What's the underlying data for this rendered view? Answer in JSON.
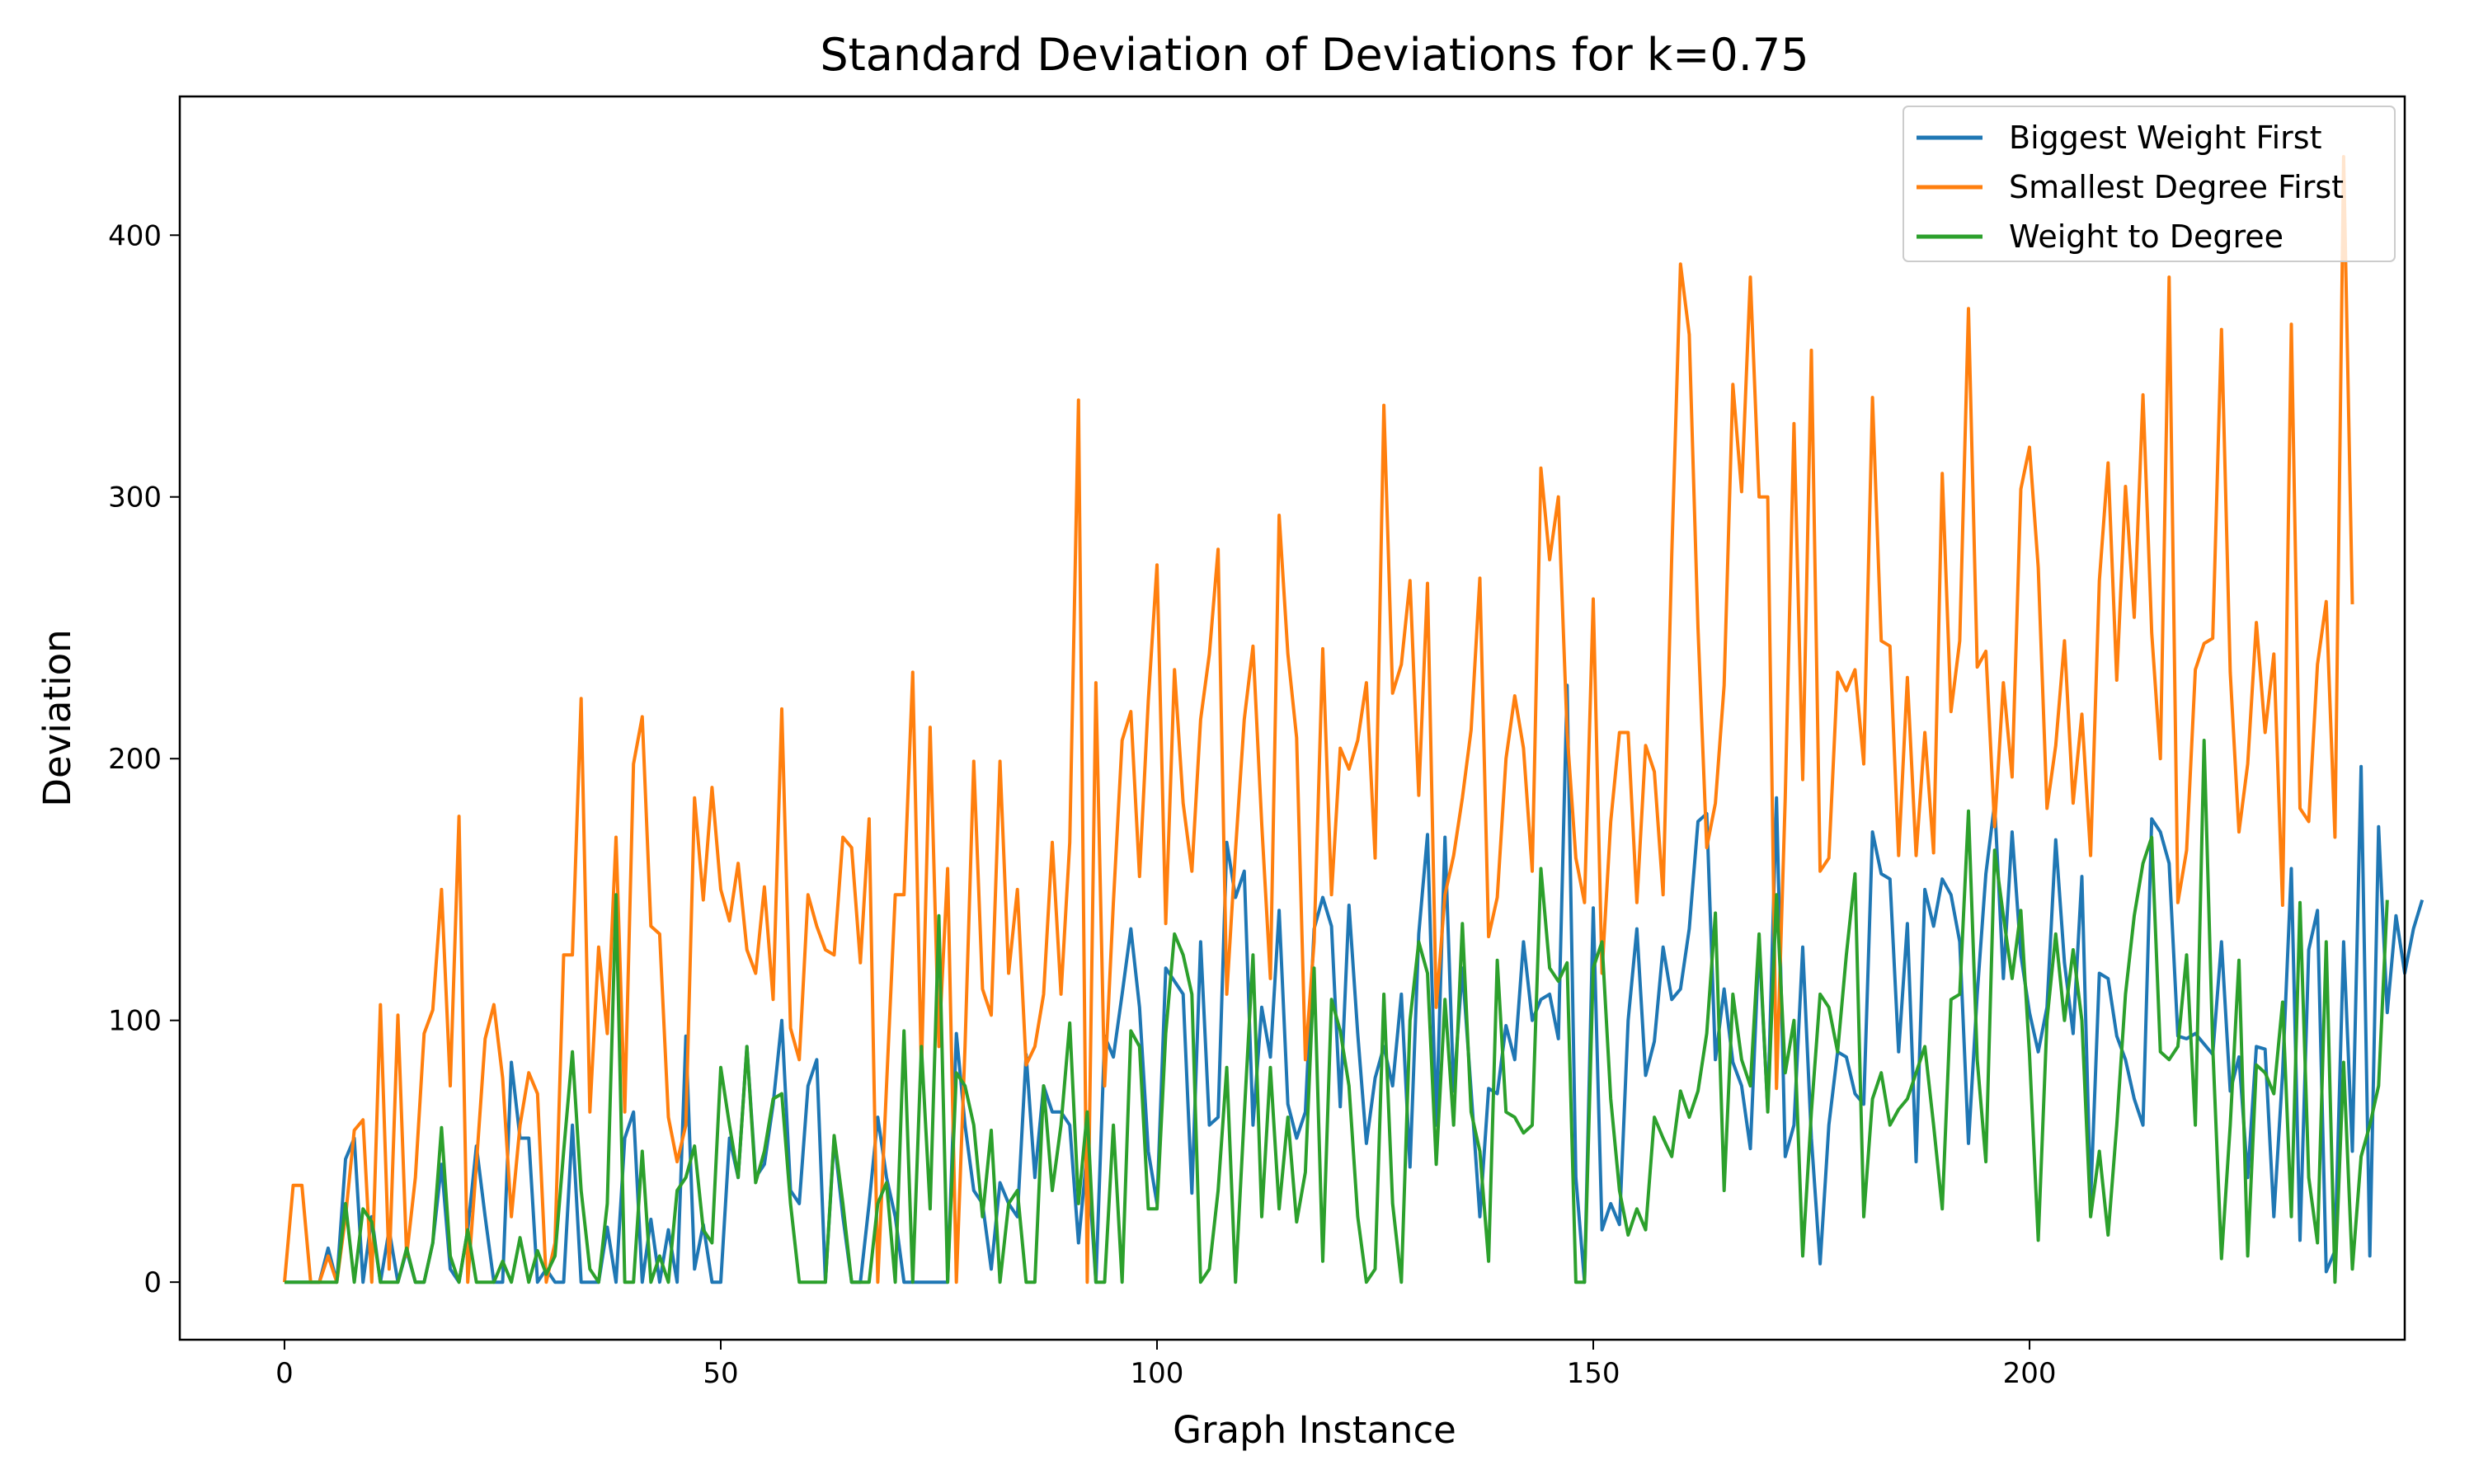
{
  "chart_data": {
    "type": "line",
    "title": "Standard Deviation of Deviations for k=0.75",
    "xlabel": "Graph Instance",
    "ylabel": "Deviation",
    "xlim": [
      -12,
      243
    ],
    "ylim": [
      -22,
      453
    ],
    "xticks": [
      0,
      50,
      100,
      150,
      200
    ],
    "yticks": [
      0,
      100,
      200,
      300,
      400
    ],
    "grid": false,
    "legend_position": "top-right",
    "series": [
      {
        "name": "Biggest Weight First",
        "color": "#1f77b4",
        "values": [
          0,
          0,
          0,
          0,
          0,
          13,
          0,
          47,
          55,
          0,
          25,
          0,
          20,
          0,
          12,
          0,
          0,
          15,
          45,
          5,
          0,
          20,
          52,
          25,
          0,
          0,
          84,
          55,
          55,
          0,
          5,
          0,
          0,
          60,
          0,
          0,
          0,
          21,
          0,
          55,
          65,
          0,
          24,
          0,
          20,
          0,
          94,
          5,
          22,
          0,
          0,
          55,
          40,
          90,
          40,
          45,
          68,
          100,
          35,
          30,
          75,
          85,
          0,
          55,
          25,
          0,
          0,
          30,
          63,
          40,
          25,
          0,
          0,
          0,
          0,
          0,
          0,
          95,
          60,
          35,
          30,
          5,
          38,
          30,
          25,
          87,
          40,
          75,
          65,
          65,
          60,
          15,
          50,
          0,
          94,
          86,
          110,
          135,
          105,
          50,
          30,
          120,
          115,
          110,
          34,
          130,
          60,
          63,
          168,
          147,
          157,
          60,
          105,
          86,
          142,
          68,
          55,
          65,
          135,
          147,
          136,
          67,
          144,
          95,
          53,
          78,
          90,
          75,
          110,
          44,
          133,
          171,
          60,
          170,
          73,
          120,
          73,
          25,
          74,
          72,
          98,
          85,
          130,
          100,
          108,
          110,
          93,
          228,
          40,
          0,
          143,
          20,
          30,
          22,
          100,
          135,
          79,
          92,
          128,
          108,
          112,
          135,
          176,
          179,
          85,
          112,
          84,
          75,
          51,
          130,
          66,
          185,
          48,
          60,
          128,
          55,
          7,
          60,
          88,
          86,
          72,
          68,
          172,
          156,
          154,
          88,
          137,
          46,
          150,
          136,
          154,
          148,
          130,
          53,
          110,
          156,
          183,
          116,
          172,
          125,
          103,
          88,
          105,
          169,
          122,
          95,
          155,
          31,
          118,
          116,
          94,
          85,
          70,
          60,
          177,
          172,
          160,
          94,
          93,
          95,
          91,
          87,
          130,
          73,
          86,
          40,
          90,
          89,
          25,
          80,
          158,
          16,
          127,
          142,
          4,
          12,
          130,
          50,
          197,
          10,
          174,
          103,
          140,
          118,
          135,
          146
        ]
      },
      {
        "name": "Smallest Degree First",
        "color": "#ff7f0e",
        "values": [
          0,
          37,
          37,
          0,
          0,
          10,
          0,
          25,
          58,
          62,
          0,
          106,
          5,
          102,
          10,
          40,
          95,
          104,
          150,
          75,
          178,
          0,
          45,
          93,
          106,
          78,
          25,
          60,
          80,
          72,
          0,
          15,
          125,
          125,
          223,
          65,
          128,
          95,
          170,
          65,
          198,
          216,
          136,
          133,
          63,
          46,
          60,
          185,
          146,
          189,
          150,
          138,
          160,
          127,
          118,
          151,
          108,
          219,
          97,
          85,
          148,
          136,
          127,
          125,
          170,
          166,
          122,
          177,
          0,
          75,
          148,
          148,
          233,
          80,
          212,
          90,
          158,
          0,
          90,
          199,
          112,
          102,
          199,
          118,
          150,
          83,
          90,
          110,
          168,
          110,
          168,
          337,
          0,
          229,
          75,
          145,
          207,
          218,
          155,
          222,
          274,
          137,
          234,
          183,
          157,
          215,
          240,
          280,
          110,
          165,
          215,
          243,
          175,
          116,
          293,
          240,
          208,
          85,
          130,
          242,
          148,
          204,
          196,
          207,
          229,
          162,
          335,
          225,
          236,
          268,
          186,
          267,
          105,
          148,
          163,
          185,
          211,
          269,
          132,
          147,
          200,
          224,
          204,
          157,
          311,
          276,
          300,
          210,
          162,
          145,
          261,
          118,
          176,
          210,
          210,
          145,
          205,
          195,
          148,
          278,
          389,
          362,
          250,
          166,
          183,
          228,
          343,
          302,
          384,
          300,
          300,
          74,
          185,
          328,
          192,
          356,
          157,
          162,
          233,
          226,
          234,
          198,
          338,
          245,
          243,
          163,
          231,
          163,
          210,
          164,
          309,
          218,
          245,
          372,
          235,
          241,
          174,
          229,
          193,
          303,
          319,
          273,
          181,
          205,
          245,
          183,
          217,
          163,
          268,
          313,
          230,
          304,
          254,
          339,
          248,
          200,
          384,
          145,
          165,
          234,
          244,
          246,
          364,
          233,
          172,
          198,
          252,
          210,
          240,
          144,
          366,
          181,
          176,
          236,
          260,
          170,
          430,
          259
        ]
      },
      {
        "name": "Weight to Degree",
        "color": "#2ca02c",
        "values": [
          0,
          0,
          0,
          0,
          0,
          0,
          0,
          30,
          0,
          28,
          23,
          0,
          0,
          0,
          13,
          0,
          0,
          15,
          59,
          10,
          0,
          20,
          0,
          0,
          0,
          8,
          0,
          17,
          0,
          12,
          3,
          10,
          50,
          88,
          35,
          5,
          0,
          30,
          148,
          0,
          0,
          50,
          0,
          10,
          0,
          35,
          40,
          52,
          20,
          15,
          82,
          60,
          40,
          90,
          38,
          50,
          70,
          72,
          30,
          0,
          0,
          0,
          0,
          56,
          30,
          0,
          0,
          0,
          30,
          38,
          0,
          96,
          0,
          90,
          28,
          140,
          0,
          80,
          75,
          60,
          25,
          58,
          0,
          30,
          35,
          0,
          0,
          75,
          35,
          60,
          99,
          30,
          65,
          0,
          0,
          60,
          0,
          96,
          90,
          28,
          28,
          95,
          133,
          125,
          110,
          0,
          5,
          35,
          82,
          0,
          64,
          125,
          25,
          82,
          28,
          63,
          23,
          42,
          120,
          8,
          108,
          96,
          75,
          25,
          0,
          5,
          110,
          30,
          0,
          100,
          130,
          118,
          45,
          108,
          60,
          137,
          65,
          50,
          8,
          123,
          65,
          63,
          57,
          60,
          158,
          120,
          115,
          122,
          0,
          0,
          120,
          130,
          70,
          35,
          18,
          28,
          20,
          63,
          55,
          48,
          73,
          63,
          73,
          95,
          141,
          35,
          110,
          85,
          75,
          133,
          65,
          148,
          80,
          100,
          10,
          65,
          110,
          105,
          88,
          125,
          156,
          25,
          70,
          80,
          60,
          66,
          70,
          80,
          90,
          60,
          28,
          108,
          110,
          180,
          85,
          46,
          165,
          140,
          116,
          142,
          87,
          16,
          100,
          133,
          100,
          127,
          100,
          25,
          50,
          18,
          60,
          110,
          140,
          160,
          170,
          88,
          85,
          90,
          125,
          60,
          207,
          90,
          9,
          60,
          123,
          10,
          83,
          80,
          72,
          107,
          25,
          145,
          40,
          15,
          130,
          0,
          84,
          5,
          48,
          60,
          75,
          146
        ]
      }
    ]
  }
}
